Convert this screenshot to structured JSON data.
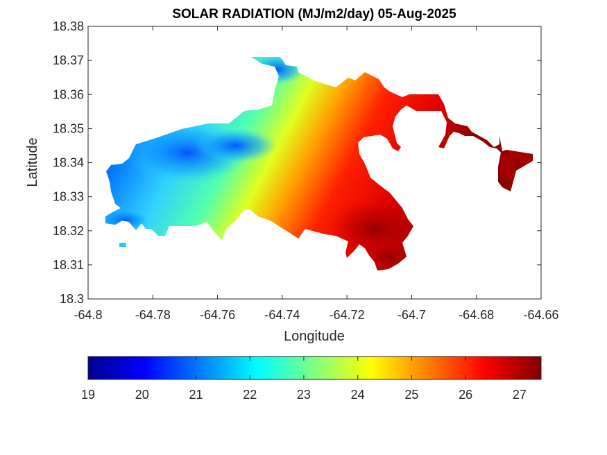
{
  "chart_data": {
    "type": "heatmap",
    "title": "SOLAR RADIATION (MJ/m2/day) 05-Aug-2025",
    "xlabel": "Longitude",
    "ylabel": "Latitude",
    "xlim": [
      -64.8,
      -64.66
    ],
    "ylim": [
      18.3,
      18.38
    ],
    "x_ticks": [
      "-64.8",
      "-64.78",
      "-64.76",
      "-64.74",
      "-64.72",
      "-64.7",
      "-64.68",
      "-64.66"
    ],
    "y_ticks": [
      "18.3",
      "18.31",
      "18.32",
      "18.33",
      "18.34",
      "18.35",
      "18.36",
      "18.37",
      "18.38"
    ],
    "colorbar": {
      "colormap": "jet",
      "range": [
        19,
        27.4
      ],
      "ticks": [
        "19",
        "20",
        "21",
        "22",
        "23",
        "24",
        "25",
        "26",
        "27"
      ]
    },
    "grid": false
  },
  "colors": {
    "jet": [
      "#00008f",
      "#0000ff",
      "#00ffff",
      "#ffff00",
      "#ff0000",
      "#800000"
    ]
  }
}
